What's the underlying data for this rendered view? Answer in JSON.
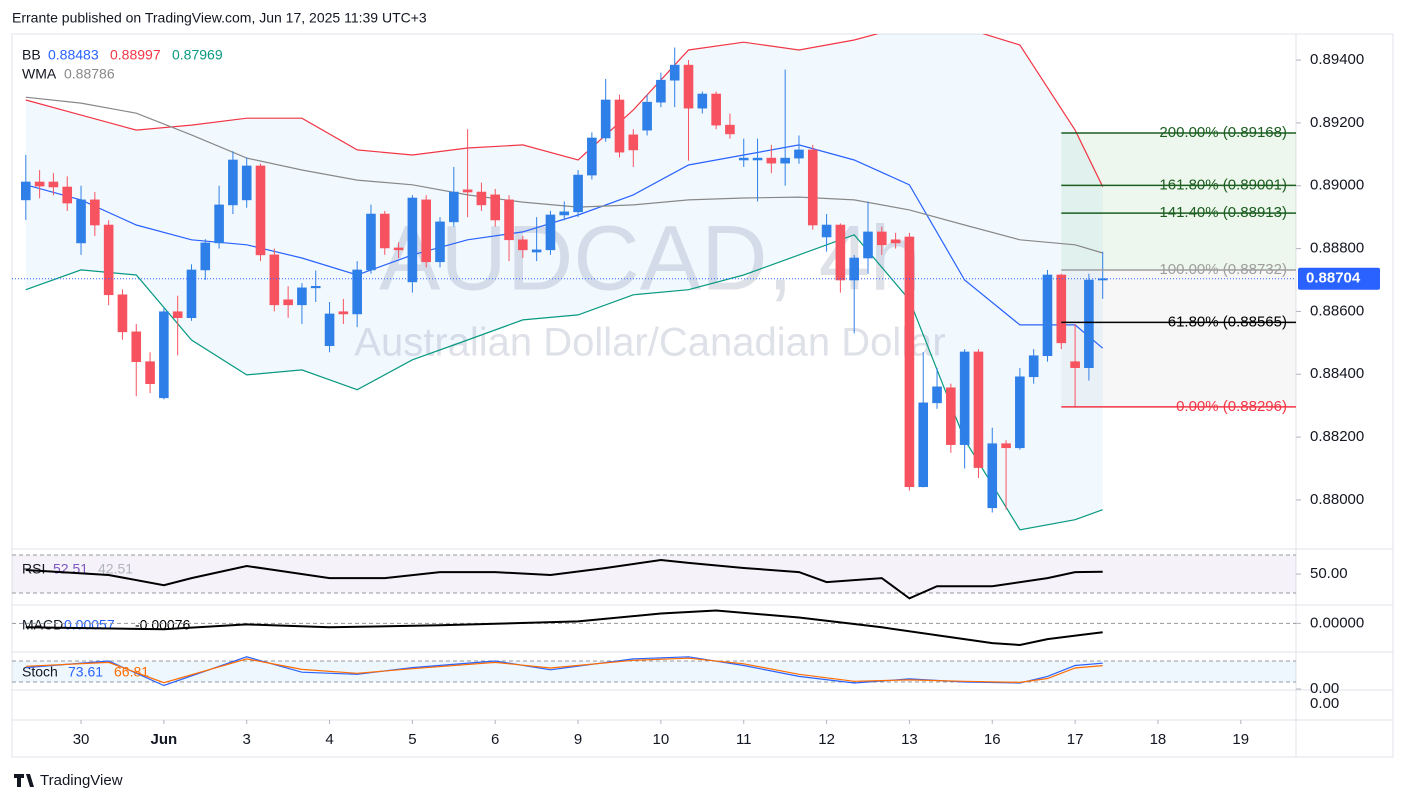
{
  "header": "Errante published on TradingView.com, Jun 17, 2025 11:39 UTC+3",
  "footer": "TradingView",
  "chart_data": {
    "type": "candlestick",
    "title": "AUDCAD, 4h",
    "subtitle": "Australian Dollar/Canadian Dollar",
    "up_color": "#2f7fe8",
    "down_color": "#f7525f",
    "open": [
      0.88955,
      0.89012,
      0.89012,
      0.88996,
      0.88818,
      0.88955,
      0.88875,
      0.88653,
      0.88535,
      0.8844,
      0.88325,
      0.88599,
      0.8858,
      0.88732,
      0.88818,
      0.88939,
      0.88955,
      0.89063,
      0.8878,
      0.88637,
      0.88621,
      0.88675,
      0.88491,
      0.88599,
      0.88592,
      0.88732,
      0.8891,
      0.88802,
      0.88694,
      0.88955,
      0.88758,
      0.88885,
      0.88987,
      0.8898,
      0.88971,
      0.88955,
      0.88828,
      0.88789,
      0.88796,
      0.88907,
      0.88917,
      0.89034,
      0.89152,
      0.89273,
      0.89162,
      0.89177,
      0.89266,
      0.89336,
      0.89384,
      0.89247,
      0.89292,
      0.89193,
      0.89082,
      0.89082,
      0.89088,
      0.89072,
      0.89088,
      0.89114,
      0.88837,
      0.88875,
      0.887,
      0.8877,
      0.88853,
      0.88828,
      0.88837,
      0.88042,
      0.88309,
      0.88357,
      0.88176,
      0.88471,
      0.87975,
      0.88179,
      0.88166,
      0.88392,
      0.88459,
      0.88716,
      0.8844,
      0.88421,
      0.887
    ],
    "high": [
      0.89098,
      0.8905,
      0.8904,
      0.8903,
      0.89,
      0.8898,
      0.8889,
      0.8867,
      0.8856,
      0.8847,
      0.8861,
      0.8865,
      0.8875,
      0.8883,
      0.89,
      0.8911,
      0.8909,
      0.8907,
      0.888,
      0.8868,
      0.8869,
      0.8873,
      0.8863,
      0.8864,
      0.8876,
      0.8894,
      0.8892,
      0.8882,
      0.8897,
      0.8897,
      0.889,
      0.8906,
      0.8918,
      0.8901,
      0.8899,
      0.8897,
      0.8884,
      0.889,
      0.8892,
      0.8895,
      0.8905,
      0.8917,
      0.8934,
      0.8929,
      0.8918,
      0.8929,
      0.8936,
      0.8944,
      0.894,
      0.893,
      0.893,
      0.8923,
      0.8915,
      0.8915,
      0.8913,
      0.8937,
      0.8916,
      0.8913,
      0.8891,
      0.8888,
      0.8878,
      0.8895,
      0.8887,
      0.8885,
      0.8885,
      0.8847,
      0.8842,
      0.8837,
      0.8848,
      0.8848,
      0.8823,
      0.8819,
      0.8842,
      0.8848,
      0.88732,
      0.8872,
      0.8856,
      0.8872,
      0.8879
    ],
    "low": [
      0.88891,
      0.8896,
      0.8897,
      0.8892,
      0.8878,
      0.8884,
      0.8862,
      0.8851,
      0.8833,
      0.8834,
      0.8832,
      0.8846,
      0.8857,
      0.887,
      0.888,
      0.8891,
      0.8893,
      0.8876,
      0.886,
      0.8858,
      0.8856,
      0.8863,
      0.8847,
      0.8856,
      0.8855,
      0.8872,
      0.8878,
      0.8877,
      0.8866,
      0.8874,
      0.8874,
      0.8887,
      0.889,
      0.8892,
      0.8887,
      0.8876,
      0.8877,
      0.8876,
      0.8878,
      0.8889,
      0.889,
      0.8902,
      0.8914,
      0.8909,
      0.8906,
      0.8916,
      0.8925,
      0.8925,
      0.8908,
      0.8923,
      0.8918,
      0.8915,
      0.8906,
      0.8895,
      0.8904,
      0.89,
      0.8907,
      0.8886,
      0.8879,
      0.8866,
      0.8853,
      0.8872,
      0.8878,
      0.888,
      0.8803,
      0.8804,
      0.8829,
      0.8815,
      0.881,
      0.8807,
      0.8796,
      0.8797,
      0.8816,
      0.8837,
      0.8844,
      0.8848,
      0.88296,
      0.8838,
      0.8864
    ],
    "close": [
      0.89012,
      0.88999,
      0.88996,
      0.88945,
      0.88955,
      0.88875,
      0.88653,
      0.88535,
      0.8844,
      0.8837,
      0.88599,
      0.8858,
      0.88732,
      0.88818,
      0.88939,
      0.89082,
      0.89063,
      0.8878,
      0.88621,
      0.88621,
      0.88675,
      0.8868,
      0.88592,
      0.88592,
      0.88732,
      0.8891,
      0.88802,
      0.88796,
      0.88961,
      0.88758,
      0.88885,
      0.8898,
      0.8898,
      0.88939,
      0.88891,
      0.88828,
      0.88796,
      0.88796,
      0.88907,
      0.88917,
      0.89034,
      0.89152,
      0.89273,
      0.89107,
      0.89114,
      0.89266,
      0.89336,
      0.89384,
      0.89247,
      0.89292,
      0.89193,
      0.89165,
      0.89088,
      0.89088,
      0.89072,
      0.89088,
      0.89114,
      0.88875,
      0.88875,
      0.887,
      0.8877,
      0.88853,
      0.88812,
      0.88818,
      0.88042,
      0.88309,
      0.8836,
      0.88176,
      0.88471,
      0.88103,
      0.88179,
      0.88166,
      0.88392,
      0.88459,
      0.88716,
      0.885,
      0.88421,
      0.887,
      0.88704
    ],
    "xlim": [
      -1,
      92
    ],
    "xticks": [
      {
        "value": 4,
        "label": "30"
      },
      {
        "value": 10,
        "label": "Jun"
      },
      {
        "value": 16,
        "label": "3"
      },
      {
        "value": 22,
        "label": "4"
      },
      {
        "value": 28,
        "label": "5"
      },
      {
        "value": 34,
        "label": "6"
      },
      {
        "value": 40,
        "label": "9"
      },
      {
        "value": 46,
        "label": "10"
      },
      {
        "value": 52,
        "label": "11"
      },
      {
        "value": 58,
        "label": "12"
      },
      {
        "value": 64,
        "label": "13"
      },
      {
        "value": 70,
        "label": "16"
      },
      {
        "value": 76,
        "label": "17"
      },
      {
        "value": 82,
        "label": "18"
      },
      {
        "value": 88,
        "label": "19"
      }
    ],
    "ylim": [
      0.87847,
      0.89483
    ],
    "yticks": [
      {
        "value": 0.894,
        "label": "0.89400"
      },
      {
        "value": 0.892,
        "label": "0.89200"
      },
      {
        "value": 0.89,
        "label": "0.89000"
      },
      {
        "value": 0.888,
        "label": "0.88800"
      },
      {
        "value": 0.886,
        "label": "0.88600"
      },
      {
        "value": 0.884,
        "label": "0.88400"
      },
      {
        "value": 0.882,
        "label": "0.88200"
      },
      {
        "value": 0.88,
        "label": "0.88000"
      }
    ],
    "last_price": 0.88704,
    "overlays": {
      "x": [
        0,
        4,
        8,
        12,
        16,
        20,
        24,
        28,
        32,
        36,
        40,
        44,
        48,
        52,
        56,
        60,
        64,
        68,
        72,
        76,
        78
      ],
      "lines": [
        {
          "name": "BB",
          "color": "#2962ff",
          "values": [
            0.89003,
            0.88955,
            0.88875,
            0.88828,
            0.88812,
            0.8877,
            0.88716,
            0.8878,
            0.88828,
            0.88853,
            0.88907,
            0.88971,
            0.89066,
            0.89098,
            0.8913,
            0.89082,
            0.89003,
            0.887,
            0.88557,
            0.88557,
            0.88483
          ]
        },
        {
          "color": "#f23645",
          "values": [
            0.89273,
            0.89225,
            0.89177,
            0.89193,
            0.89215,
            0.89215,
            0.89114,
            0.89098,
            0.8912,
            0.8913,
            0.89082,
            0.89241,
            0.89432,
            0.89457,
            0.89432,
            0.89464,
            0.89511,
            0.89502,
            0.89448,
            0.89177,
            0.88997
          ]
        },
        {
          "color": "#089981",
          "values": [
            0.88669,
            0.88732,
            0.88716,
            0.88509,
            0.88398,
            0.88414,
            0.88351,
            0.88446,
            0.88509,
            0.88573,
            0.88589,
            0.88653,
            0.88669,
            0.88716,
            0.8878,
            0.88844,
            0.88637,
            0.88192,
            0.87905,
            0.87937,
            0.87969
          ]
        },
        {
          "name": "WMA",
          "color": "#888888",
          "values": [
            0.89282,
            0.89263,
            0.89231,
            0.89162,
            0.89088,
            0.8905,
            0.89018,
            0.89003,
            0.88971,
            0.88948,
            0.88932,
            0.88939,
            0.88955,
            0.88961,
            0.88964,
            0.88955,
            0.88923,
            0.88875,
            0.88828,
            0.88812,
            0.88786
          ]
        }
      ]
    },
    "legend": [
      {
        "name": "BB",
        "values": [
          0.88483,
          0.88997,
          0.87969
        ],
        "colors": [
          "#2962ff",
          "#f23645",
          "#089981"
        ]
      },
      {
        "name": "WMA",
        "values": [
          0.88786
        ],
        "colors": [
          "#888888"
        ]
      }
    ],
    "fib": {
      "x_start": 75,
      "levels": [
        {
          "label": "200.00% (0.89168)",
          "value": 0.89168,
          "color": "#1b5e20"
        },
        {
          "label": "161.80% (0.89001)",
          "value": 0.89001,
          "color": "#1b5e20"
        },
        {
          "label": "141.40% (0.88913)",
          "value": 0.88913,
          "color": "#1b5e20"
        },
        {
          "label": "100.00% (0.88732)",
          "value": 0.88732,
          "color": "#9e9e9e"
        },
        {
          "label": "61.80% (0.88565)",
          "value": 0.88565,
          "color": "#000000"
        },
        {
          "label": "0.00% (0.88296)",
          "value": 0.88296,
          "color": "#f23645"
        }
      ]
    },
    "rsi": {
      "name": "RSI",
      "legend_values": [
        52.51,
        42.51
      ],
      "ylim": [
        23,
        73
      ],
      "yticks": [
        {
          "value": 50,
          "label": "50.00"
        }
      ],
      "x": [
        0,
        6,
        10,
        12,
        16,
        18,
        22,
        26,
        30,
        34,
        38,
        42,
        46,
        48,
        52,
        56,
        58,
        62,
        64,
        66,
        70,
        74,
        76,
        78
      ],
      "values": [
        54.2,
        49,
        38.4,
        45.8,
        58.4,
        54.2,
        45.8,
        45.8,
        52.1,
        52.1,
        49,
        56.3,
        64.7,
        61.6,
        56.3,
        52.1,
        41.6,
        45.8,
        24.7,
        37.4,
        37.4,
        45.8,
        52.1,
        52.51
      ]
    },
    "macd": {
      "name": "MACD",
      "legend_values": [
        0.00057,
        -0.00076
      ],
      "ylim": [
        -0.0023,
        0.0015
      ],
      "yticks": [
        {
          "value": 0,
          "label": "0.00000"
        }
      ],
      "x": [
        0,
        10,
        16,
        22,
        30,
        40,
        46,
        50,
        56,
        62,
        66,
        70,
        72,
        74,
        78
      ],
      "values": [
        -0.00034,
        -0.00051,
        -9e-05,
        -0.00034,
        -0.00017,
        0.00017,
        0.00085,
        0.00111,
        0.00051,
        -0.00034,
        -0.00102,
        -0.0017,
        -0.00187,
        -0.00136,
        -0.00076
      ]
    },
    "stoch": {
      "name": "Stoch",
      "legend_values": [
        73.61,
        66.81
      ],
      "ylim": [
        0,
        100
      ],
      "yticks": [
        {
          "value": 0,
          "label": "0.00"
        }
      ],
      "x": [
        0,
        6,
        10,
        16,
        20,
        24,
        28,
        34,
        38,
        44,
        48,
        52,
        56,
        60,
        64,
        68,
        72,
        74,
        76,
        78
      ],
      "series": [
        {
          "color": "#2962ff",
          "values": [
            61,
            80,
            10,
            92,
            48,
            42,
            61,
            80,
            55,
            86,
            92,
            67,
            36,
            17,
            29,
            20,
            17,
            36,
            67,
            73.61
          ]
        },
        {
          "color": "#ff6d00",
          "values": [
            65,
            76,
            18,
            86,
            56,
            45,
            58,
            76,
            60,
            82,
            88,
            72,
            42,
            22,
            26,
            22,
            19,
            30,
            60,
            66.81
          ]
        }
      ]
    },
    "bottom_axis_label": {
      "value": 0,
      "label": "0.00"
    }
  }
}
